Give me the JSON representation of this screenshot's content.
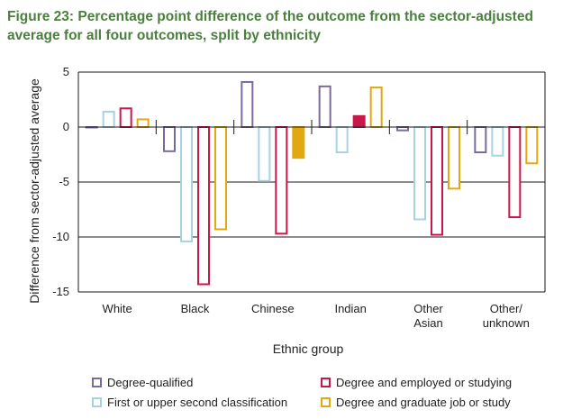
{
  "title": "Figure 23: Percentage point difference of the outcome from the sector-adjusted average for all four outcomes, split by ethnicity",
  "chart_data": {
    "type": "bar",
    "title": "Figure 23: Percentage point difference of the outcome from the sector-adjusted average for all four outcomes, split by ethnicity",
    "xlabel": "Ethnic group",
    "ylabel": "Difference from sector-adjusted average",
    "ylim": [
      -15,
      5
    ],
    "yticks": [
      5,
      0,
      -5,
      -10,
      -15
    ],
    "ytick_labels": [
      "5",
      "0",
      "-5",
      "-10",
      "-15"
    ],
    "gridlines": [
      -5,
      -10
    ],
    "categories": [
      "White",
      "Black",
      "Chinese",
      "Indian",
      "Other Asian",
      "Other/ unknown"
    ],
    "category_lines": [
      [
        "White"
      ],
      [
        "Black"
      ],
      [
        "Chinese"
      ],
      [
        "Indian"
      ],
      [
        "Other",
        "Asian"
      ],
      [
        "Other/",
        "unknown"
      ]
    ],
    "series": [
      {
        "name": "Degree-qualified",
        "color": "#7b6a9e",
        "filled": [
          false,
          false,
          false,
          false,
          false,
          false
        ],
        "values": [
          0,
          -2.2,
          4.1,
          3.7,
          -0.3,
          -2.3
        ]
      },
      {
        "name": "First or upper second classification",
        "color": "#a6d3df",
        "filled": [
          false,
          false,
          false,
          false,
          false,
          false
        ],
        "values": [
          1.4,
          -10.4,
          -4.9,
          -2.3,
          -8.4,
          -2.6
        ]
      },
      {
        "name": "Degree and employed or studying",
        "color": "#c8174b",
        "filled": [
          false,
          false,
          false,
          true,
          false,
          false
        ],
        "values": [
          1.7,
          -14.3,
          -9.7,
          1.0,
          -9.8,
          -8.2
        ]
      },
      {
        "name": "Degree and graduate job or study",
        "color": "#e2a812",
        "filled": [
          false,
          false,
          true,
          false,
          false,
          false
        ],
        "values": [
          0.7,
          -9.3,
          -2.8,
          3.6,
          -5.6,
          -3.3
        ]
      }
    ],
    "legend": {
      "placement": "bottom",
      "order": [
        0,
        2,
        1,
        3
      ]
    }
  }
}
